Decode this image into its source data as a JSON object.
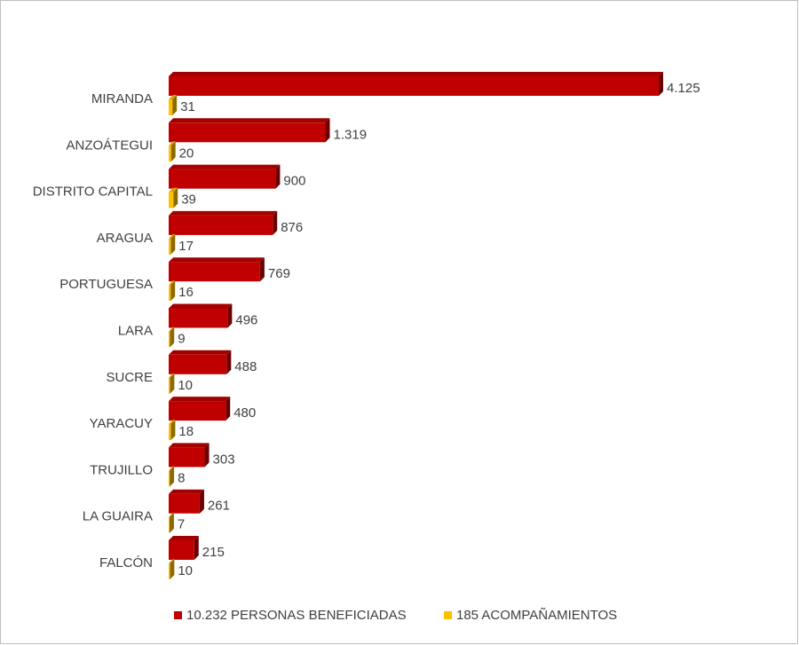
{
  "chart_data": {
    "type": "bar3d-horizontal",
    "categories": [
      "MIRANDA",
      "ANZOÁTEGUI",
      "DISTRITO CAPITAL",
      "ARAGUA",
      "PORTUGUESA",
      "LARA",
      "SUCRE",
      "YARACUY",
      "TRUJILLO",
      "LA GUAIRA",
      "FALCÓN"
    ],
    "series": [
      {
        "name": "10.232 PERSONAS BENEFICIADAS",
        "color": "#c00000",
        "values": [
          4125,
          1319,
          900,
          876,
          769,
          496,
          488,
          480,
          303,
          261,
          215
        ],
        "value_labels": [
          "4.125",
          "1.319",
          "900",
          "876",
          "769",
          "496",
          "488",
          "480",
          "303",
          "261",
          "215"
        ]
      },
      {
        "name": "185 ACOMPAÑAMIENTOS",
        "color": "#ffc000",
        "values": [
          31,
          20,
          39,
          17,
          16,
          9,
          10,
          18,
          8,
          7,
          10
        ]
      }
    ],
    "legend": "bottom"
  }
}
